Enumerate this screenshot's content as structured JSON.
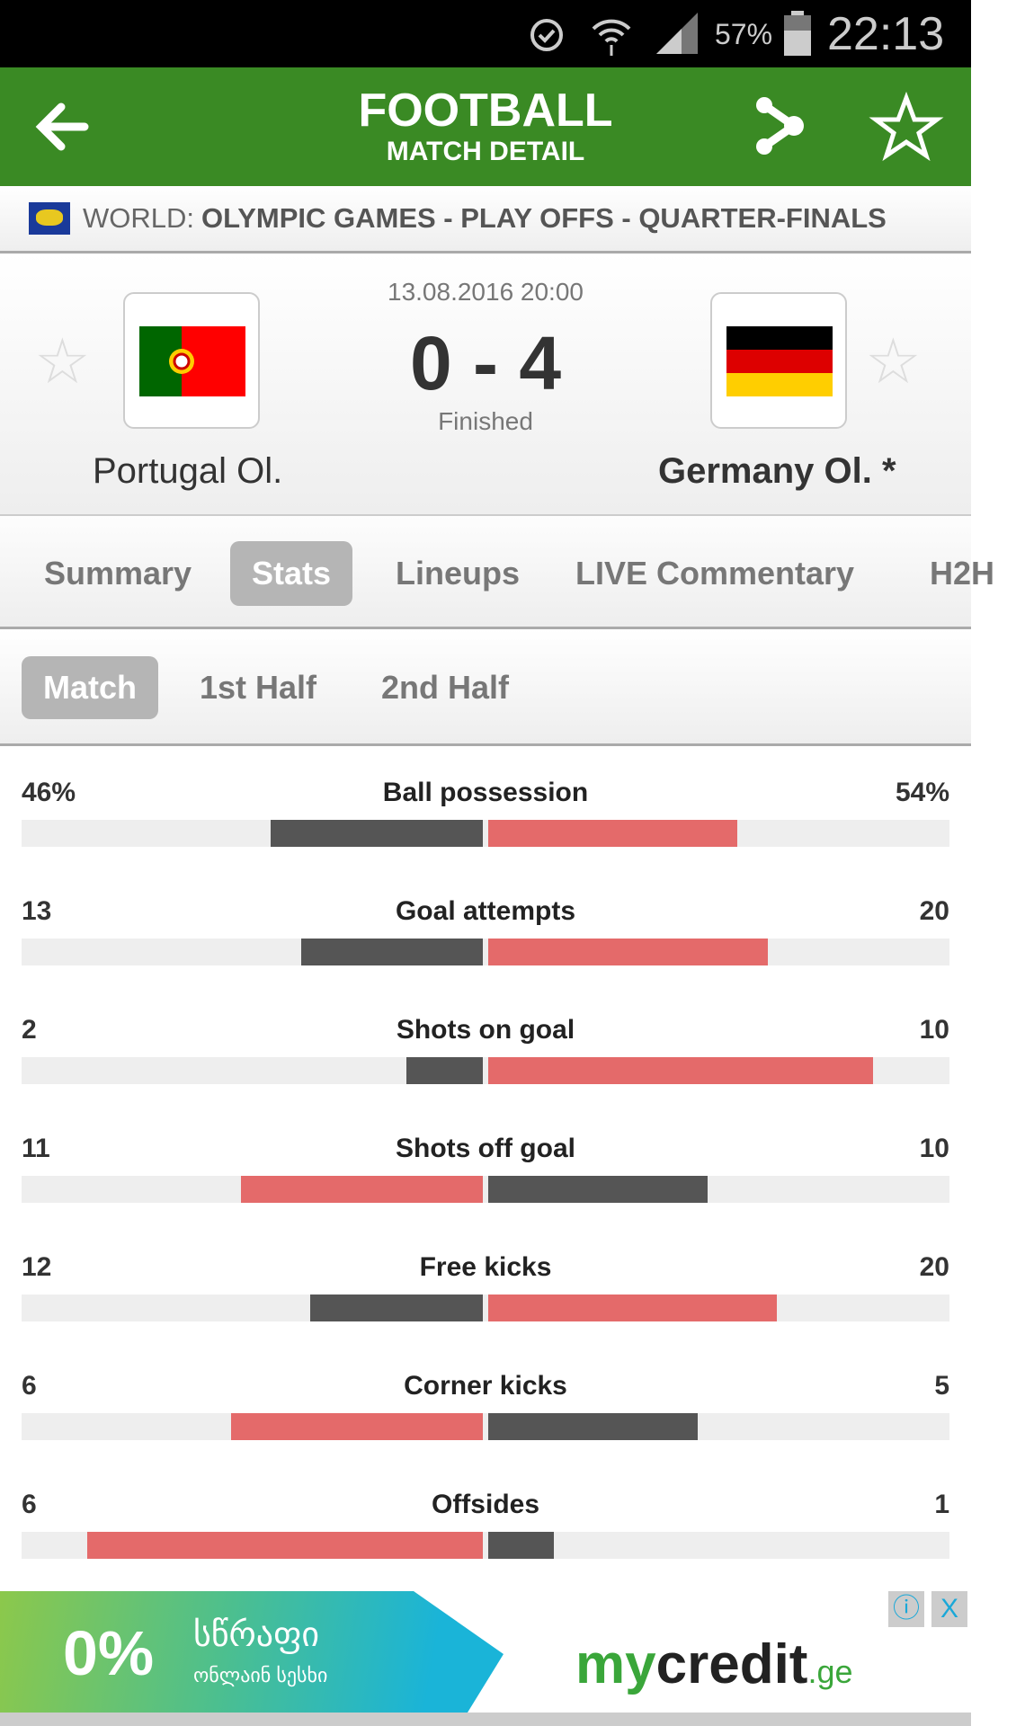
{
  "status_bar": {
    "battery": "57%",
    "time": "22:13",
    "icons": [
      "alarm-icon",
      "wifi-icon",
      "signal-icon",
      "battery-icon"
    ]
  },
  "header": {
    "title": "FOOTBALL",
    "subtitle": "MATCH DETAIL",
    "icons": [
      "back-arrow-icon",
      "share-icon",
      "star-icon"
    ]
  },
  "breadcrumb": {
    "prefix": "WORLD:",
    "competition": "OLYMPIC GAMES - PLAY OFFS - QUARTER-FINALS"
  },
  "match": {
    "datetime": "13.08.2016 20:00",
    "score": "0 - 4",
    "status": "Finished",
    "home": "Portugal Ol.",
    "away": "Germany Ol. *"
  },
  "tabs": [
    {
      "label": "Summary"
    },
    {
      "label": "Stats",
      "active": true
    },
    {
      "label": "Lineups"
    },
    {
      "label": "LIVE Commentary"
    },
    {
      "label": "H2H"
    }
  ],
  "subtabs": [
    {
      "label": "Match",
      "active": true
    },
    {
      "label": "1st Half"
    },
    {
      "label": "2nd Half"
    }
  ],
  "stats": [
    {
      "name": "Ball possession",
      "home": "46%",
      "away": "54%",
      "hv": 46,
      "av": 54
    },
    {
      "name": "Goal attempts",
      "home": "13",
      "away": "20",
      "hv": 13,
      "av": 20
    },
    {
      "name": "Shots on goal",
      "home": "2",
      "away": "10",
      "hv": 2,
      "av": 10
    },
    {
      "name": "Shots off goal",
      "home": "11",
      "away": "10",
      "hv": 11,
      "av": 10
    },
    {
      "name": "Free kicks",
      "home": "12",
      "away": "20",
      "hv": 12,
      "av": 20
    },
    {
      "name": "Corner kicks",
      "home": "6",
      "away": "5",
      "hv": 6,
      "av": 5
    },
    {
      "name": "Offsides",
      "home": "6",
      "away": "1",
      "hv": 6,
      "av": 1
    }
  ],
  "colors": {
    "header_green": "#3a8a24",
    "bar_leading": "#e46a6a",
    "bar_trailing": "#555555",
    "track": "#eeeeee"
  },
  "ad": {
    "percent": "0%",
    "line1": "სწრაფი",
    "line2": "ონლაინ სესხი",
    "logo_my": "my",
    "logo_credit": "credit",
    "logo_ge": ".ge",
    "info": "ⓘ",
    "close": "X"
  }
}
